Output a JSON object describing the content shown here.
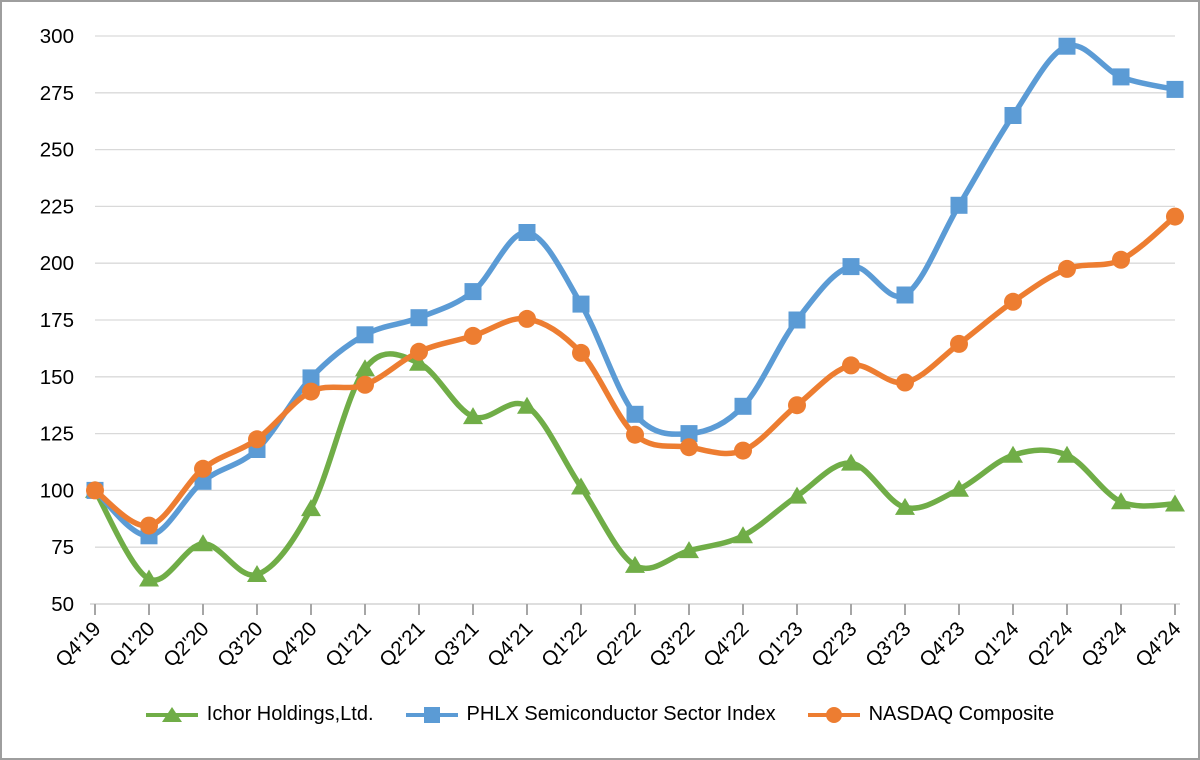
{
  "chart_data": {
    "type": "line",
    "smooth": true,
    "grid": true,
    "legend_position": "bottom",
    "categories": [
      "Q4'19",
      "Q1'20",
      "Q2'20",
      "Q3'20",
      "Q4'20",
      "Q1'21",
      "Q2'21",
      "Q3'21",
      "Q4'21",
      "Q1'22",
      "Q2'22",
      "Q3'22",
      "Q4'22",
      "Q1'23",
      "Q2'23",
      "Q3'23",
      "Q4'23",
      "Q1'24",
      "Q2'24",
      "Q3'24",
      "Q4'24"
    ],
    "y_axis": {
      "min": 50,
      "max": 300,
      "step": 25,
      "ticks": [
        300,
        275,
        250,
        225,
        200,
        175,
        150,
        125,
        100,
        75,
        50
      ]
    },
    "series": [
      {
        "name": "Ichor Holdings,Ltd.",
        "marker": "triangle",
        "color": "#70AD47",
        "values": [
          100,
          61,
          76.5,
          63,
          92,
          153.5,
          156,
          132.5,
          137,
          101.5,
          67,
          73.5,
          80,
          97.5,
          112,
          92.5,
          100.5,
          115.5,
          115.5,
          95,
          94
        ]
      },
      {
        "name": "PHLX Semiconductor Sector Index",
        "marker": "square",
        "color": "#5B9BD5",
        "values": [
          100,
          80,
          104,
          118,
          149.5,
          168.5,
          176,
          187.5,
          213.5,
          182,
          133.5,
          125,
          137,
          175,
          198.5,
          186,
          225.5,
          265,
          295.5,
          282,
          276.5
        ]
      },
      {
        "name": "NASDAQ Composite",
        "marker": "circle",
        "color": "#ED7D31",
        "values": [
          100,
          84.5,
          109.5,
          122.5,
          143.5,
          146.5,
          161,
          168,
          175.5,
          160.5,
          124.5,
          119,
          117.5,
          137.5,
          155,
          147.5,
          164.5,
          183,
          197.5,
          201.5,
          220.5
        ]
      }
    ],
    "colors": {
      "gridline": "#D9D9D9",
      "axis_line": "#C9C9C9",
      "tick_mark": "#A6A6A6",
      "text": "#000000",
      "frame_border": "#9E9E9E"
    }
  }
}
